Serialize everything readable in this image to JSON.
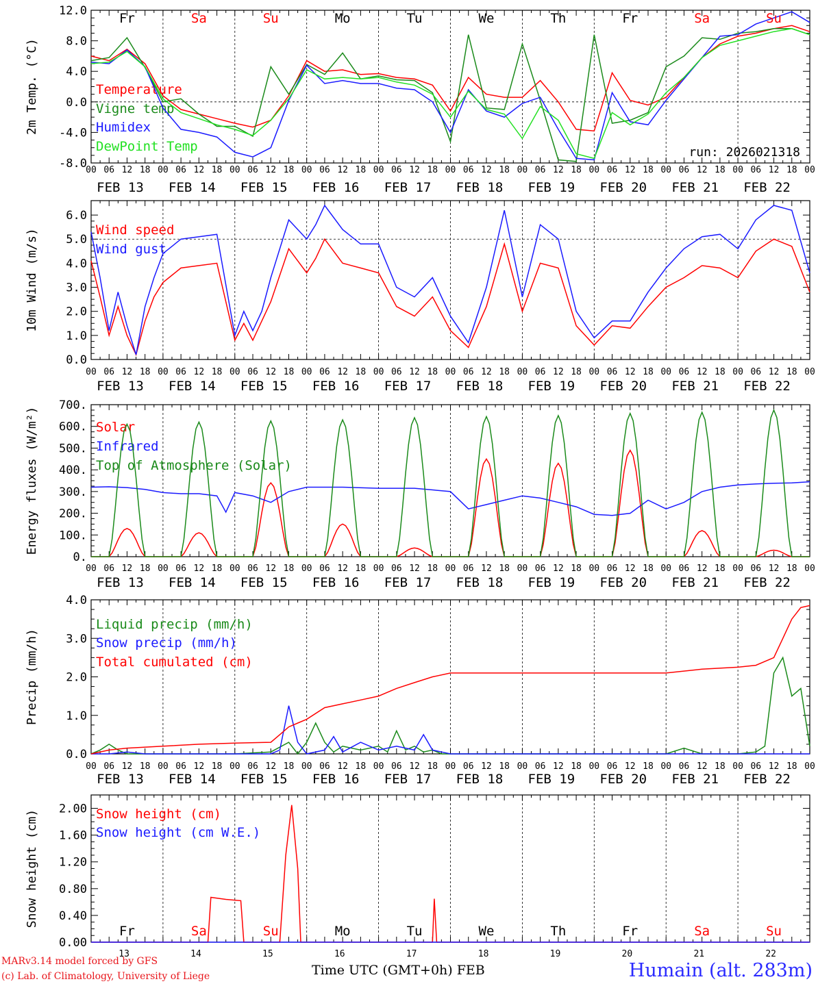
{
  "days": {
    "weekday": [
      "Fr",
      "Sa",
      "Su",
      "Mo",
      "Tu",
      "We",
      "Th",
      "Fr",
      "Sa",
      "Su"
    ],
    "weekend": [
      false,
      true,
      true,
      false,
      false,
      false,
      false,
      false,
      true,
      true
    ],
    "labels": [
      "FEB 13",
      "FEB 14",
      "FEB 15",
      "FEB 16",
      "FEB 17",
      "FEB 18",
      "FEB 19",
      "FEB 20",
      "FEB 21",
      "FEB 22"
    ],
    "numbers": [
      "13",
      "14",
      "15",
      "16",
      "17",
      "18",
      "19",
      "20",
      "21",
      "22"
    ],
    "hour_ticks": [
      "00",
      "06",
      "12",
      "18"
    ],
    "end_tick": "00"
  },
  "colors": {
    "red": "#ff0000",
    "green": "#1a8a1a",
    "blue": "#1a1aff",
    "lightgreen": "#22e022",
    "weekend": "#ff0000",
    "weekday": "#000000"
  },
  "footer": {
    "credit_line1": "MARv3.14 model forced by GFS",
    "credit_line2": "(c) Lab. of Climatology, University of Liege",
    "x_title": "Time UTC (GMT+0h) FEB",
    "station": "Humain (alt. 283m)"
  },
  "chart_data": [
    {
      "type": "line",
      "id": "temp",
      "ylabel": "2m Temp. (°C)",
      "ylim": [
        -8,
        12
      ],
      "yticks": [
        "12.0",
        "8.0",
        "4.0",
        "0.0",
        "-4.0",
        "-8.0"
      ],
      "ytick_values": [
        12,
        8,
        4,
        0,
        -4,
        -8
      ],
      "reference_line": 0,
      "annotation": "run: 2026021318",
      "x_unit": "hours since FEB 13 00 UTC",
      "series": [
        {
          "name": "Temperature",
          "color": "red",
          "x": [
            0,
            6,
            12,
            18,
            24,
            30,
            36,
            42,
            48,
            54,
            60,
            66,
            72,
            78,
            84,
            90,
            96,
            102,
            108,
            114,
            120,
            126,
            132,
            138,
            144,
            150,
            156,
            162,
            168,
            174,
            180,
            186,
            192,
            198,
            204,
            210,
            216,
            222,
            228,
            234,
            240
          ],
          "values": [
            6.0,
            5.4,
            6.9,
            5.0,
            0.8,
            -1.0,
            -1.6,
            -2.2,
            -2.8,
            -3.3,
            -2.4,
            0.8,
            5.4,
            4.0,
            4.2,
            3.6,
            3.7,
            3.2,
            3.0,
            2.2,
            -1.2,
            3.2,
            1.0,
            0.6,
            0.6,
            2.8,
            0.0,
            -3.6,
            -3.8,
            3.8,
            0.2,
            -0.4,
            0.6,
            3.2,
            5.8,
            7.6,
            8.6,
            9.0,
            9.6,
            10.0,
            9.2
          ]
        },
        {
          "name": "Vigne temp",
          "color": "green",
          "x": [
            0,
            6,
            12,
            18,
            24,
            30,
            36,
            42,
            48,
            54,
            60,
            66,
            72,
            78,
            84,
            90,
            96,
            102,
            108,
            114,
            120,
            126,
            132,
            138,
            144,
            150,
            156,
            162,
            168,
            174,
            180,
            186,
            192,
            198,
            204,
            210,
            216,
            222,
            228,
            234,
            240
          ],
          "values": [
            5.4,
            5.8,
            8.4,
            4.5,
            0.0,
            0.4,
            -1.6,
            -3.2,
            -3.2,
            -4.5,
            4.6,
            1.0,
            4.9,
            3.6,
            6.4,
            3.0,
            3.4,
            2.9,
            2.8,
            1.2,
            -5.2,
            8.8,
            -0.8,
            -1.0,
            7.6,
            0.2,
            -7.6,
            -7.8,
            8.8,
            -2.8,
            -2.4,
            -1.4,
            4.6,
            6.0,
            8.4,
            8.2,
            9.0,
            9.2,
            9.6,
            9.6,
            8.8
          ]
        },
        {
          "name": "Humidex",
          "color": "blue",
          "x": [
            0,
            6,
            12,
            18,
            24,
            30,
            36,
            42,
            48,
            54,
            60,
            66,
            72,
            78,
            84,
            90,
            96,
            102,
            108,
            114,
            120,
            126,
            132,
            138,
            144,
            150,
            156,
            162,
            168,
            174,
            180,
            186,
            192,
            198,
            204,
            210,
            216,
            222,
            228,
            234,
            240
          ],
          "values": [
            5.2,
            5.0,
            6.8,
            4.6,
            -0.8,
            -3.6,
            -4.0,
            -4.6,
            -6.6,
            -7.2,
            -6.0,
            0.2,
            4.8,
            2.4,
            2.8,
            2.4,
            2.4,
            1.8,
            1.6,
            0.0,
            -4.0,
            1.6,
            -1.2,
            -2.0,
            -0.2,
            0.6,
            -3.6,
            -7.4,
            -7.6,
            1.2,
            -2.6,
            -3.0,
            0.2,
            3.0,
            5.8,
            8.6,
            8.8,
            10.2,
            11.0,
            11.8,
            10.4
          ]
        },
        {
          "name": "DewPoint Temp",
          "color": "lightgreen",
          "x": [
            0,
            6,
            12,
            18,
            24,
            30,
            36,
            42,
            48,
            54,
            60,
            66,
            72,
            78,
            84,
            90,
            96,
            102,
            108,
            114,
            120,
            126,
            132,
            138,
            144,
            150,
            156,
            162,
            168,
            174,
            180,
            186,
            192,
            198,
            204,
            210,
            216,
            222,
            228,
            234,
            240
          ],
          "values": [
            5.0,
            5.2,
            6.6,
            4.6,
            0.4,
            -1.4,
            -2.2,
            -3.0,
            -3.6,
            -4.4,
            -2.4,
            0.4,
            4.2,
            3.0,
            3.2,
            3.0,
            3.2,
            2.6,
            2.2,
            1.0,
            -2.0,
            1.4,
            -1.0,
            -1.6,
            -4.8,
            -0.6,
            -2.4,
            -6.8,
            -7.4,
            -1.4,
            -3.0,
            -1.6,
            1.2,
            3.2,
            5.8,
            7.4,
            8.0,
            8.6,
            9.2,
            9.6,
            8.8
          ]
        }
      ]
    },
    {
      "type": "line",
      "id": "wind",
      "ylabel": "10m Wind (m/s)",
      "ylim": [
        0,
        6.6
      ],
      "yticks": [
        "6.0",
        "5.0",
        "4.0",
        "3.0",
        "2.0",
        "1.0",
        "0.0"
      ],
      "ytick_values": [
        6,
        5,
        4,
        3,
        2,
        1,
        0
      ],
      "reference_line": 5,
      "x_unit": "hours since FEB 13 00 UTC",
      "series": [
        {
          "name": "Wind speed",
          "color": "red",
          "x": [
            0,
            3,
            6,
            9,
            12,
            15,
            18,
            21,
            24,
            30,
            36,
            42,
            48,
            51,
            54,
            57,
            60,
            66,
            72,
            75,
            78,
            84,
            90,
            96,
            102,
            108,
            114,
            120,
            126,
            132,
            138,
            144,
            150,
            156,
            162,
            168,
            174,
            180,
            186,
            192,
            198,
            204,
            210,
            216,
            222,
            228,
            234,
            240
          ],
          "values": [
            4.1,
            2.6,
            1.0,
            2.2,
            1.0,
            0.2,
            1.6,
            2.6,
            3.2,
            3.8,
            3.9,
            4.0,
            0.8,
            1.5,
            0.8,
            1.6,
            2.4,
            4.6,
            3.6,
            4.2,
            5.0,
            4.0,
            3.8,
            3.6,
            2.2,
            1.8,
            2.6,
            1.2,
            0.5,
            2.2,
            4.8,
            2.0,
            4.0,
            3.8,
            1.4,
            0.6,
            1.4,
            1.3,
            2.2,
            3.0,
            3.4,
            3.9,
            3.8,
            3.4,
            4.5,
            5.0,
            4.7,
            2.8
          ]
        },
        {
          "name": "Wind gust",
          "color": "blue",
          "x": [
            0,
            3,
            6,
            9,
            12,
            15,
            18,
            21,
            24,
            30,
            36,
            42,
            48,
            51,
            54,
            57,
            60,
            66,
            72,
            75,
            78,
            84,
            90,
            96,
            102,
            108,
            114,
            120,
            126,
            132,
            138,
            144,
            150,
            156,
            162,
            168,
            174,
            180,
            186,
            192,
            198,
            204,
            210,
            216,
            222,
            228,
            234,
            240
          ],
          "values": [
            5.3,
            3.4,
            1.2,
            2.8,
            1.4,
            0.2,
            2.2,
            3.4,
            4.4,
            5.0,
            5.1,
            5.2,
            1.0,
            2.0,
            1.2,
            2.0,
            3.4,
            5.8,
            5.0,
            5.6,
            6.4,
            5.4,
            4.8,
            4.8,
            3.0,
            2.6,
            3.4,
            1.8,
            0.7,
            3.0,
            6.2,
            2.6,
            5.6,
            5.0,
            2.0,
            0.9,
            1.6,
            1.6,
            2.8,
            3.8,
            4.6,
            5.1,
            5.2,
            4.6,
            5.8,
            6.4,
            6.2,
            3.6
          ]
        }
      ]
    },
    {
      "type": "line",
      "id": "energy",
      "ylabel": "Energy fluxes (W/m²)",
      "ylim": [
        0,
        700
      ],
      "yticks": [
        "700.",
        "600.",
        "500.",
        "400.",
        "300.",
        "200.",
        "100.",
        "0."
      ],
      "ytick_values": [
        700,
        600,
        500,
        400,
        300,
        200,
        100,
        0
      ],
      "x_unit": "hours since FEB 13 00 UTC",
      "series": [
        {
          "name": "Solar",
          "color": "red",
          "peaks": [
            130,
            110,
            340,
            150,
            40,
            450,
            430,
            490,
            120,
            30
          ],
          "peak_hour": 12
        },
        {
          "name": "Infrared",
          "color": "blue",
          "x": [
            0,
            6,
            12,
            18,
            24,
            30,
            36,
            42,
            45,
            48,
            54,
            60,
            66,
            72,
            84,
            96,
            108,
            120,
            126,
            132,
            138,
            144,
            150,
            156,
            162,
            168,
            174,
            180,
            186,
            192,
            198,
            204,
            210,
            216,
            222,
            228,
            234,
            240
          ],
          "values": [
            320,
            322,
            318,
            310,
            295,
            290,
            290,
            280,
            205,
            295,
            280,
            250,
            300,
            320,
            320,
            315,
            315,
            300,
            220,
            240,
            260,
            280,
            270,
            250,
            230,
            195,
            190,
            200,
            260,
            220,
            250,
            300,
            320,
            330,
            335,
            338,
            340,
            345
          ]
        },
        {
          "name": "Top of Atmosphere (Solar)",
          "color": "green",
          "peaks": [
            610,
            620,
            625,
            630,
            640,
            645,
            650,
            660,
            665,
            675
          ],
          "peak_hour": 12
        }
      ]
    },
    {
      "type": "line",
      "id": "precip",
      "ylabel": "Precip (mm/h)",
      "ylim": [
        0,
        4.0
      ],
      "yticks": [
        "4.0",
        "3.0",
        "2.0",
        "1.0",
        "0.0"
      ],
      "ytick_values": [
        4,
        3,
        2,
        1,
        0
      ],
      "x_unit": "hours since FEB 13 00 UTC",
      "series": [
        {
          "name": "Liquid precip (mm/h)",
          "color": "green",
          "x": [
            0,
            3,
            6,
            9,
            12,
            18,
            24,
            48,
            60,
            66,
            69,
            72,
            75,
            78,
            81,
            84,
            90,
            96,
            99,
            102,
            105,
            108,
            111,
            114,
            117,
            120,
            144,
            192,
            198,
            204,
            216,
            222,
            225,
            228,
            231,
            234,
            237,
            240
          ],
          "values": [
            0,
            0.1,
            0.25,
            0.1,
            0,
            0,
            0,
            0,
            0.05,
            0.3,
            0,
            0.3,
            0.8,
            0.3,
            0.05,
            0.2,
            0.1,
            0.2,
            0.05,
            0.6,
            0.1,
            0.2,
            0.05,
            0.1,
            0,
            0,
            0,
            0,
            0.15,
            0,
            0,
            0.05,
            0.2,
            2.1,
            2.5,
            1.5,
            1.7,
            0.2
          ]
        },
        {
          "name": "Snow precip (mm/h)",
          "color": "blue",
          "x": [
            0,
            6,
            12,
            18,
            24,
            48,
            60,
            63,
            66,
            69,
            72,
            78,
            81,
            84,
            90,
            96,
            102,
            108,
            111,
            114,
            117,
            120,
            240
          ],
          "values": [
            0,
            0,
            0.05,
            0,
            0,
            0,
            0,
            0.1,
            1.25,
            0.3,
            0,
            0.1,
            0.45,
            0.05,
            0.3,
            0.1,
            0.2,
            0.1,
            0.5,
            0.1,
            0.05,
            0,
            0
          ]
        },
        {
          "name": "Total cumulated (cm)",
          "color": "red",
          "x": [
            0,
            6,
            12,
            24,
            36,
            48,
            60,
            63,
            66,
            69,
            72,
            78,
            84,
            90,
            96,
            102,
            108,
            114,
            120,
            144,
            168,
            192,
            204,
            216,
            222,
            228,
            231,
            234,
            237,
            240
          ],
          "values": [
            0,
            0.1,
            0.15,
            0.2,
            0.25,
            0.28,
            0.3,
            0.5,
            0.7,
            0.8,
            0.9,
            1.2,
            1.3,
            1.4,
            1.5,
            1.7,
            1.85,
            2.0,
            2.1,
            2.1,
            2.1,
            2.1,
            2.2,
            2.25,
            2.3,
            2.5,
            3.0,
            3.5,
            3.8,
            3.85
          ]
        }
      ]
    },
    {
      "type": "line",
      "id": "snow",
      "ylabel": "Snow height (cm)",
      "ylim": [
        0,
        2.2
      ],
      "yticks": [
        "2.00",
        "1.60",
        "1.20",
        "0.80",
        "0.40",
        "0.00"
      ],
      "ytick_values": [
        2.0,
        1.6,
        1.2,
        0.8,
        0.4,
        0.0
      ],
      "x_unit": "hours since FEB 13 00 UTC",
      "series": [
        {
          "name": "Snow height (cm)",
          "color": "red",
          "x": [
            0,
            39,
            40,
            45,
            50,
            51,
            63,
            65,
            67,
            69,
            70,
            114,
            114.6,
            115.4,
            116,
            240
          ],
          "values": [
            0,
            0,
            0.67,
            0.64,
            0.62,
            0,
            0,
            1.3,
            2.05,
            1.1,
            0,
            0,
            0.65,
            0,
            0,
            0
          ]
        },
        {
          "name": "Snow height (cm W.E.)",
          "color": "blue",
          "x": [
            0,
            240
          ],
          "values": [
            0,
            0
          ]
        }
      ]
    }
  ]
}
